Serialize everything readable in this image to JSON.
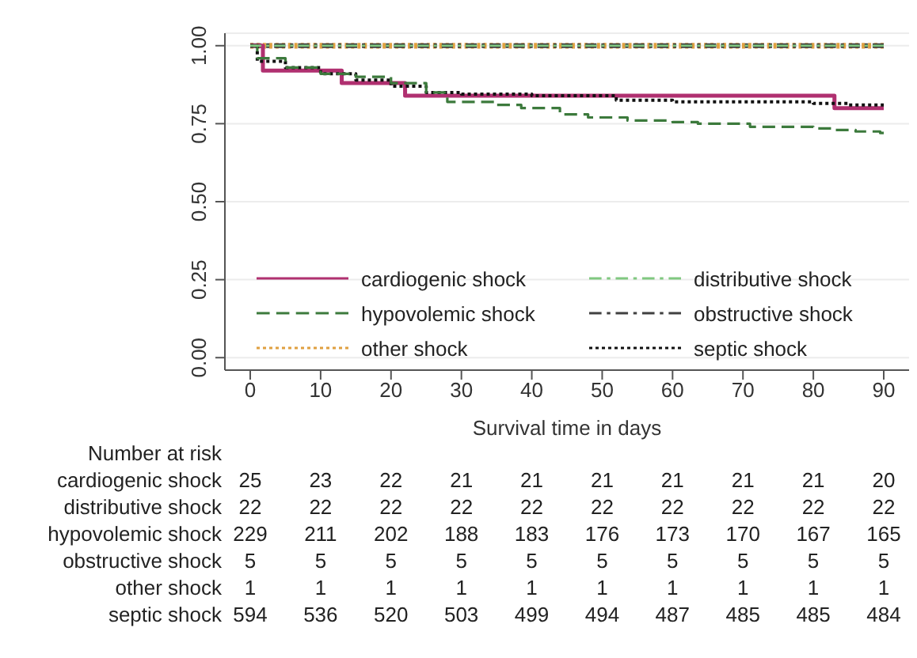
{
  "chart_data": {
    "type": "step",
    "xlabel": "Survival time in days",
    "xlim": [
      -3.6,
      93.6
    ],
    "xticks": [
      0,
      10,
      20,
      30,
      40,
      50,
      60,
      70,
      80,
      90
    ],
    "ylim": [
      -0.04,
      1.04
    ],
    "yticks": [
      {
        "value": 0,
        "label": "0.00"
      },
      {
        "value": 0.25,
        "label": "0.25"
      },
      {
        "value": 0.5,
        "label": "0.50"
      },
      {
        "value": 0.75,
        "label": "0.75"
      },
      {
        "value": 1,
        "label": "1.00"
      }
    ],
    "grid": "y",
    "legend": "bottom",
    "series": [
      {
        "name": "cardiogenic shock",
        "color": "#b03070",
        "line_style": "solid",
        "x": [
          0,
          1.8,
          13,
          22,
          83,
          90
        ],
        "values": [
          1,
          0.92,
          0.88,
          0.84,
          0.8,
          0.8
        ]
      },
      {
        "name": "distributive shock",
        "color": "#80c880",
        "line_style": "dashdot",
        "x": [
          0,
          90
        ],
        "values": [
          1,
          1
        ]
      },
      {
        "name": "hypovolemic shock",
        "color": "#3c7a3c",
        "line_style": "dashed",
        "x": [
          0,
          1,
          5,
          10,
          15,
          20,
          25,
          28,
          35,
          38.5,
          44,
          48,
          53.6,
          60,
          63.6,
          71,
          80,
          83,
          86,
          89.5,
          90
        ],
        "values": [
          1,
          0.96,
          0.93,
          0.91,
          0.9,
          0.88,
          0.85,
          0.82,
          0.81,
          0.8,
          0.78,
          0.77,
          0.76,
          0.755,
          0.75,
          0.74,
          0.735,
          0.73,
          0.725,
          0.72,
          0.72
        ]
      },
      {
        "name": "obstructive shock",
        "color": "#404040",
        "line_style": "dashdot",
        "x": [
          0,
          90
        ],
        "values": [
          1,
          1
        ]
      },
      {
        "name": "other shock",
        "color": "#e0a040",
        "line_style": "dotted",
        "x": [
          0,
          90
        ],
        "values": [
          1,
          1
        ]
      },
      {
        "name": "septic shock",
        "color": "#111111",
        "line_style": "dotted",
        "x": [
          0,
          1,
          5,
          10,
          15,
          20,
          25,
          30,
          40,
          48,
          52,
          60,
          70,
          80,
          85,
          90
        ],
        "values": [
          1,
          0.95,
          0.93,
          0.91,
          0.89,
          0.87,
          0.85,
          0.845,
          0.84,
          0.84,
          0.825,
          0.82,
          0.82,
          0.815,
          0.81,
          0.81
        ]
      }
    ],
    "annotations": [
      "Number at risk",
      "cardiogenic shock\t25\t23\t22\t21\t21\t21\t21\t21\t21\t20",
      "distributive shock\t22\t22\t22\t22\t22\t22\t22\t22\t22\t22",
      "hypovolemic shock\t229\t211\t202\t188\t183\t176\t173\t170\t167\t165",
      "obstructive shock\t5\t5\t5\t5\t5\t5\t5\t5\t5\t5",
      "other shock\t1\t1\t1\t1\t1\t1\t1\t1\t1\t1",
      "septic shock\t594\t536\t520\t503\t499\t494\t487\t485\t485\t484"
    ]
  }
}
